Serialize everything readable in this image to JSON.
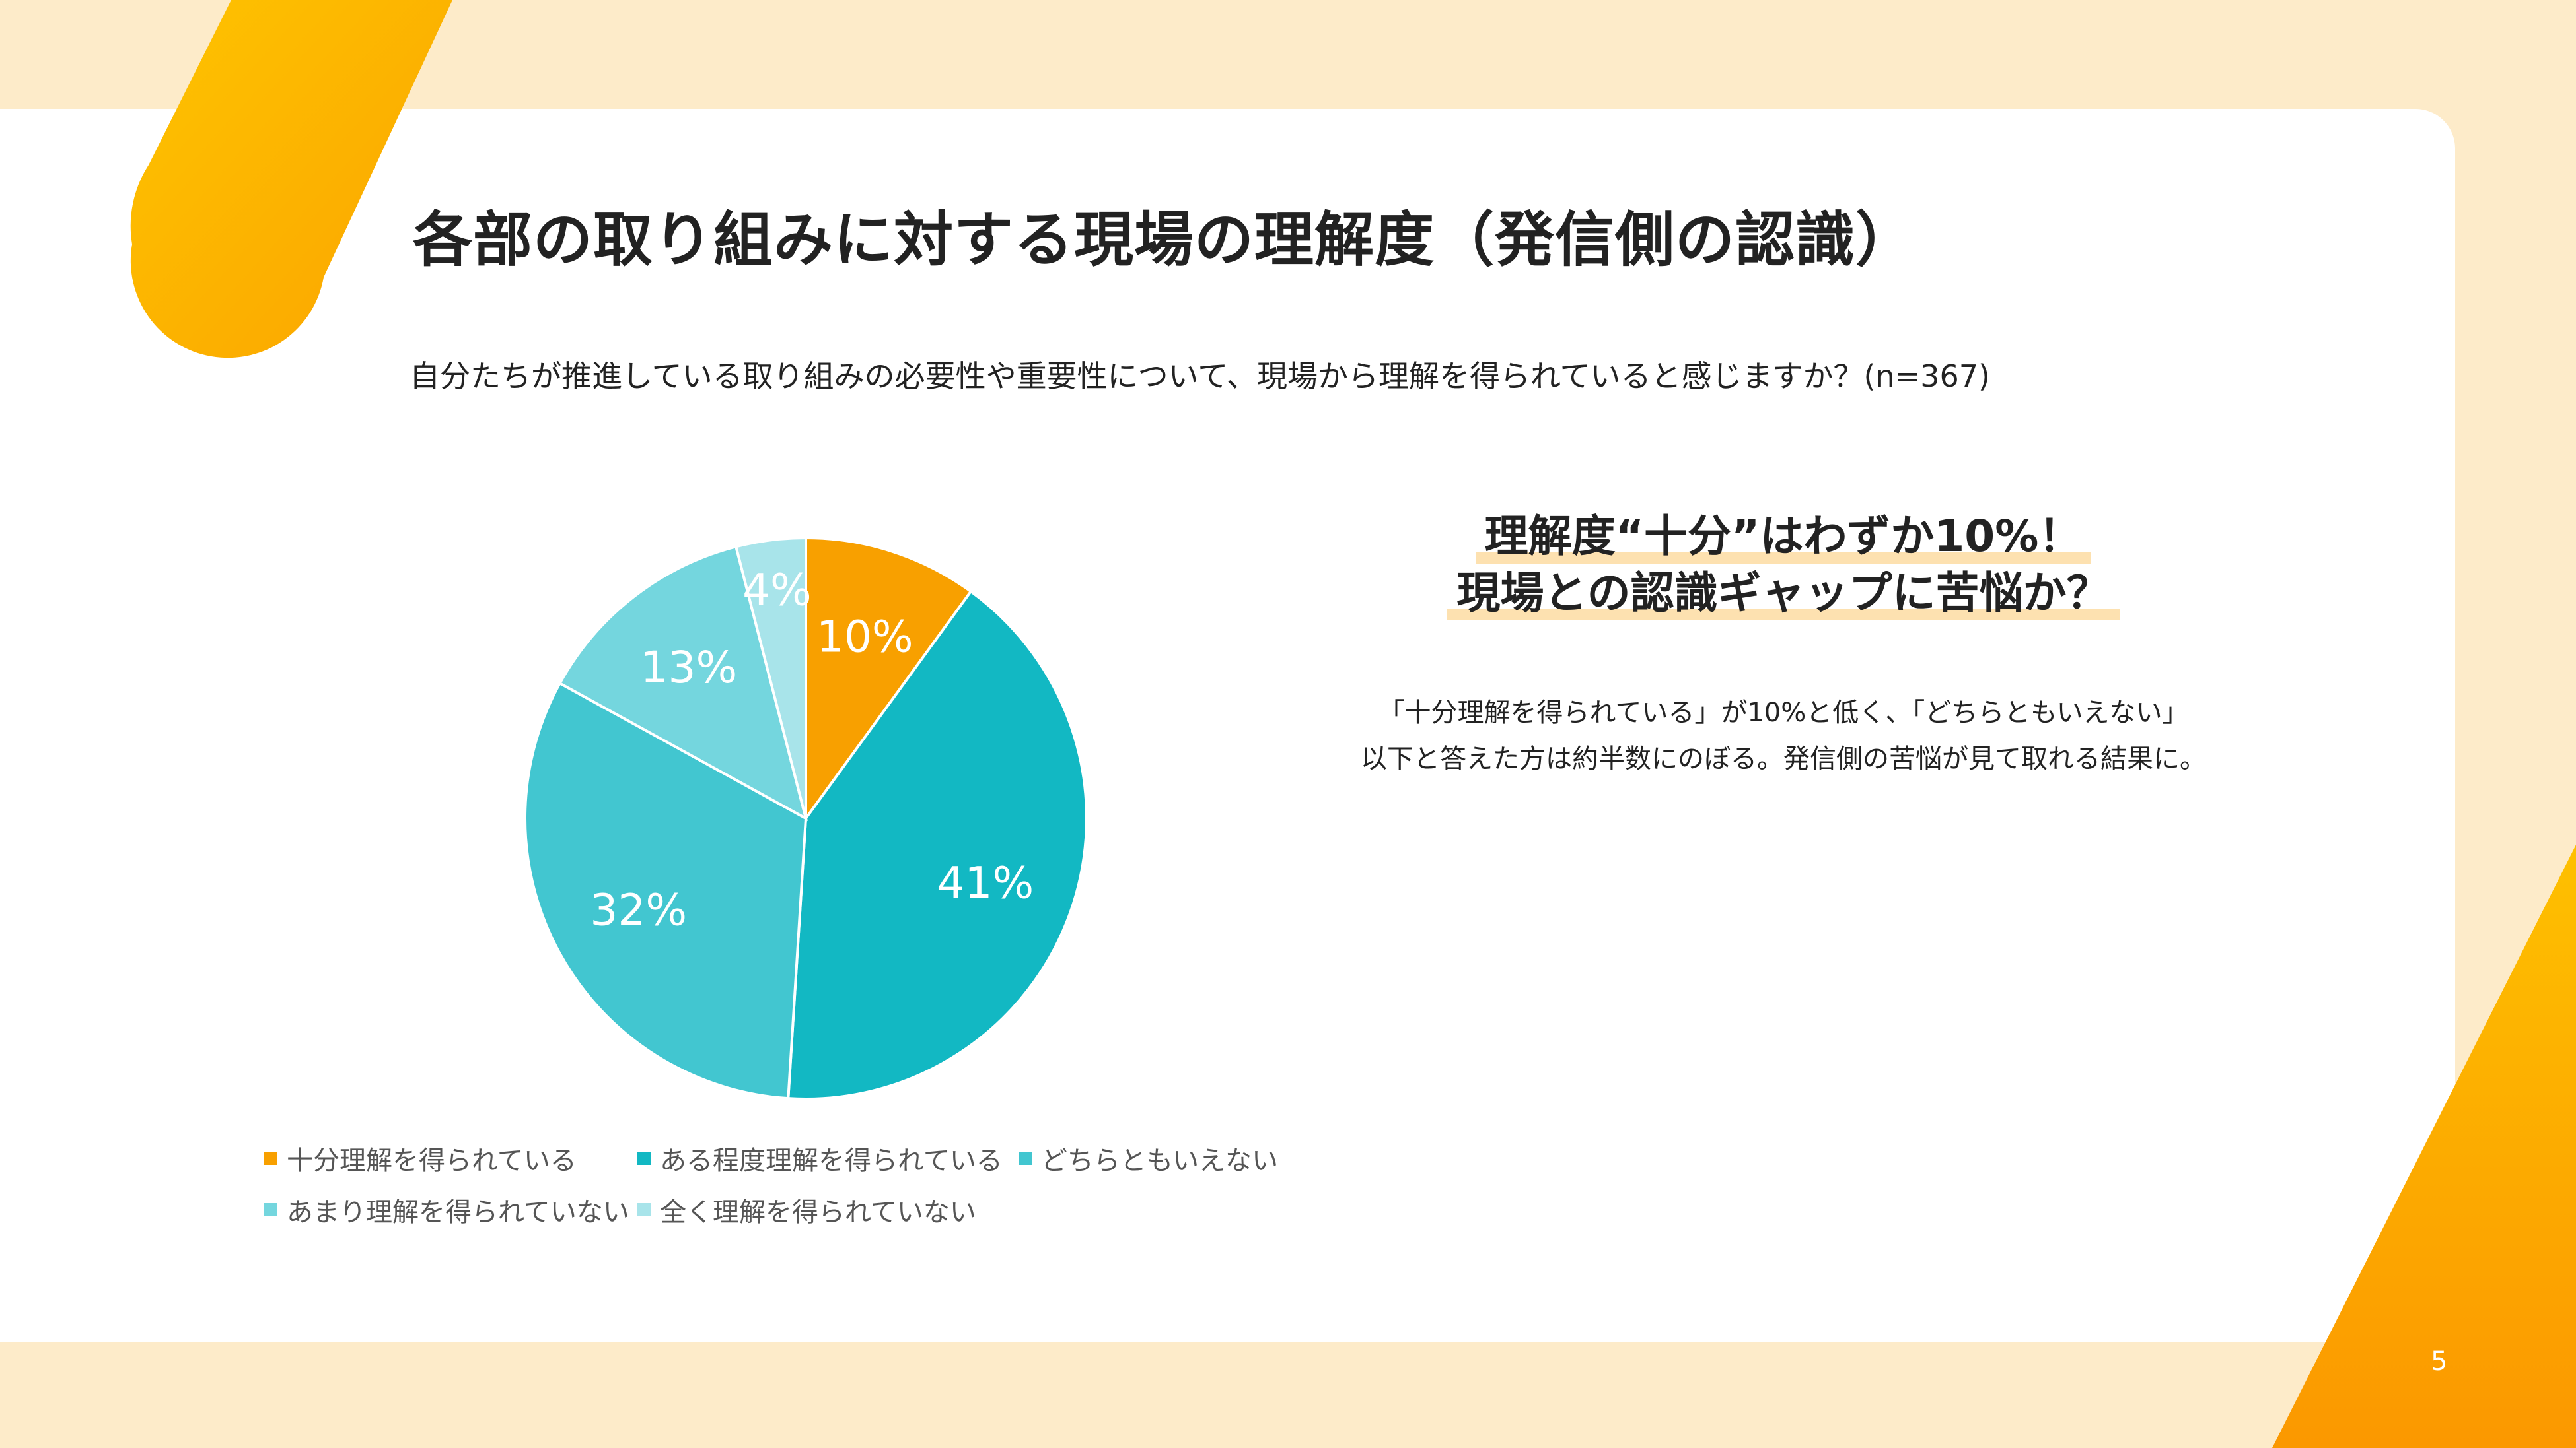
{
  "title": "各部の取り組みに対する現場の理解度（発信側の認識）",
  "subtitle": "自分たちが推進している取り組みの必要性や重要性について、現場から理解を得られていると感じますか？(n=367)",
  "headline": {
    "line1": "理解度“十分”はわずか10%！",
    "line2": "現場との認識ギャップに苦悩か？"
  },
  "body": {
    "line1": "「十分理解を得られている」が10%と低く、「どちらともいえない」",
    "line2": "以下と答えた方は約半数にのぼる。発信側の苦悩が見て取れる結果に。"
  },
  "page_number": "5",
  "colors": {
    "accent_orange": "#f8a000",
    "background_cream": "#fdebc9",
    "highlight_bar": "#fde1b0"
  },
  "chart_data": {
    "type": "pie",
    "legend_position": "bottom",
    "slices": [
      {
        "label": "十分理解を得られている",
        "value": 10,
        "display": "10%",
        "color": "#f8a000"
      },
      {
        "label": "ある程度理解を得られている",
        "value": 41,
        "display": "41%",
        "color": "#12b8c3"
      },
      {
        "label": "どちらともいえない",
        "value": 32,
        "display": "32%",
        "color": "#42c6d0"
      },
      {
        "label": "あまり理解を得られていない",
        "value": 13,
        "display": "13%",
        "color": "#74d6de"
      },
      {
        "label": "全く理解を得られていない",
        "value": 4,
        "display": "4%",
        "color": "#a8e4ea"
      }
    ]
  }
}
